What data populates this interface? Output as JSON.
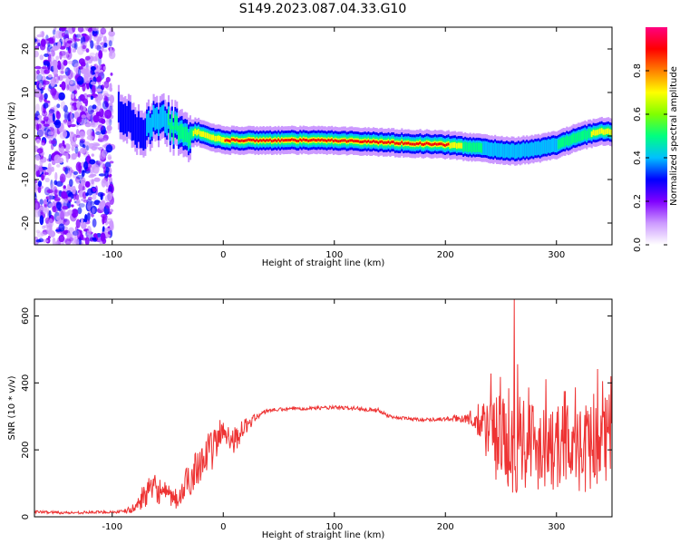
{
  "title": "S149.2023.087.04.33.G10",
  "chart_data": [
    {
      "type": "heatmap",
      "xlabel": "Height of straight line (km)",
      "ylabel": "Frequency (Hz)",
      "xlim": [
        -170,
        350
      ],
      "ylim": [
        -25,
        25
      ],
      "xticks": [
        -100,
        0,
        100,
        200,
        300
      ],
      "yticks": [
        -20,
        -10,
        0,
        10,
        20
      ],
      "colorbar": {
        "label": "Normalized spectral amplitude",
        "range": [
          0,
          1
        ],
        "ticks": [
          0.0,
          0.2,
          0.4,
          0.6,
          0.8
        ],
        "colors": [
          "#ffffff",
          "#cc99ff",
          "#8000ff",
          "#0000ff",
          "#00c0ff",
          "#00ff80",
          "#80ff00",
          "#ffff00",
          "#ff8000",
          "#ff0000",
          "#ff0080"
        ]
      },
      "noise_region_x": [
        -170,
        -100
      ],
      "ridge_frequency_hz": {
        "x": [
          -95,
          -85,
          -75,
          -65,
          -55,
          -45,
          -35,
          -25,
          -15,
          0,
          50,
          100,
          150,
          200,
          220,
          240,
          260,
          280,
          300,
          320,
          340,
          350
        ],
        "y": [
          6,
          4,
          0,
          3,
          4,
          2,
          0,
          1,
          0,
          -1,
          -1,
          -1,
          -1.5,
          -2,
          -2.5,
          -3,
          -3.5,
          -3,
          -2,
          0,
          1,
          1
        ]
      },
      "ridge_amplitude": {
        "x": [
          -95,
          -85,
          -75,
          -65,
          -55,
          -45,
          -35,
          -25,
          -15,
          0,
          50,
          100,
          150,
          200,
          220,
          240,
          260,
          280,
          300,
          320,
          340,
          350
        ],
        "y": [
          0.3,
          0.35,
          0.3,
          0.4,
          0.45,
          0.55,
          0.6,
          0.75,
          0.85,
          0.9,
          0.95,
          0.92,
          0.97,
          0.95,
          0.6,
          0.45,
          0.4,
          0.45,
          0.5,
          0.6,
          0.8,
          0.85
        ]
      }
    },
    {
      "type": "line",
      "xlabel": "Height of straight line (km)",
      "ylabel": "SNR (10 * v/v)",
      "xlim": [
        -170,
        350
      ],
      "ylim": [
        0,
        650
      ],
      "xticks": [
        -100,
        0,
        100,
        200,
        300
      ],
      "yticks": [
        0,
        200,
        400,
        600
      ],
      "color": "#ee3333",
      "series": [
        {
          "x": [
            -170,
            -140,
            -110,
            -90,
            -80,
            -70,
            -60,
            -50,
            -40,
            -30,
            -20,
            -10,
            0,
            10,
            20,
            30,
            40,
            60,
            80,
            100,
            120,
            140,
            150,
            160,
            180,
            200,
            220,
            230,
            240,
            250,
            260,
            270,
            280,
            290,
            300,
            310,
            320,
            330,
            340,
            350
          ],
          "y": [
            15,
            12,
            14,
            15,
            25,
            70,
            85,
            60,
            50,
            120,
            170,
            200,
            260,
            230,
            270,
            300,
            318,
            322,
            325,
            326,
            324,
            318,
            300,
            295,
            290,
            292,
            295,
            280,
            250,
            230,
            220,
            240,
            210,
            230,
            200,
            220,
            190,
            210,
            230,
            240
          ],
          "spread": [
            4,
            4,
            4,
            5,
            15,
            40,
            45,
            35,
            30,
            60,
            60,
            60,
            50,
            40,
            25,
            10,
            6,
            5,
            5,
            6,
            6,
            6,
            6,
            5,
            5,
            6,
            15,
            60,
            120,
            140,
            170,
            150,
            150,
            140,
            130,
            120,
            130,
            130,
            130,
            130
          ]
        }
      ],
      "max_spike": {
        "x": 262,
        "y": 650
      }
    }
  ]
}
